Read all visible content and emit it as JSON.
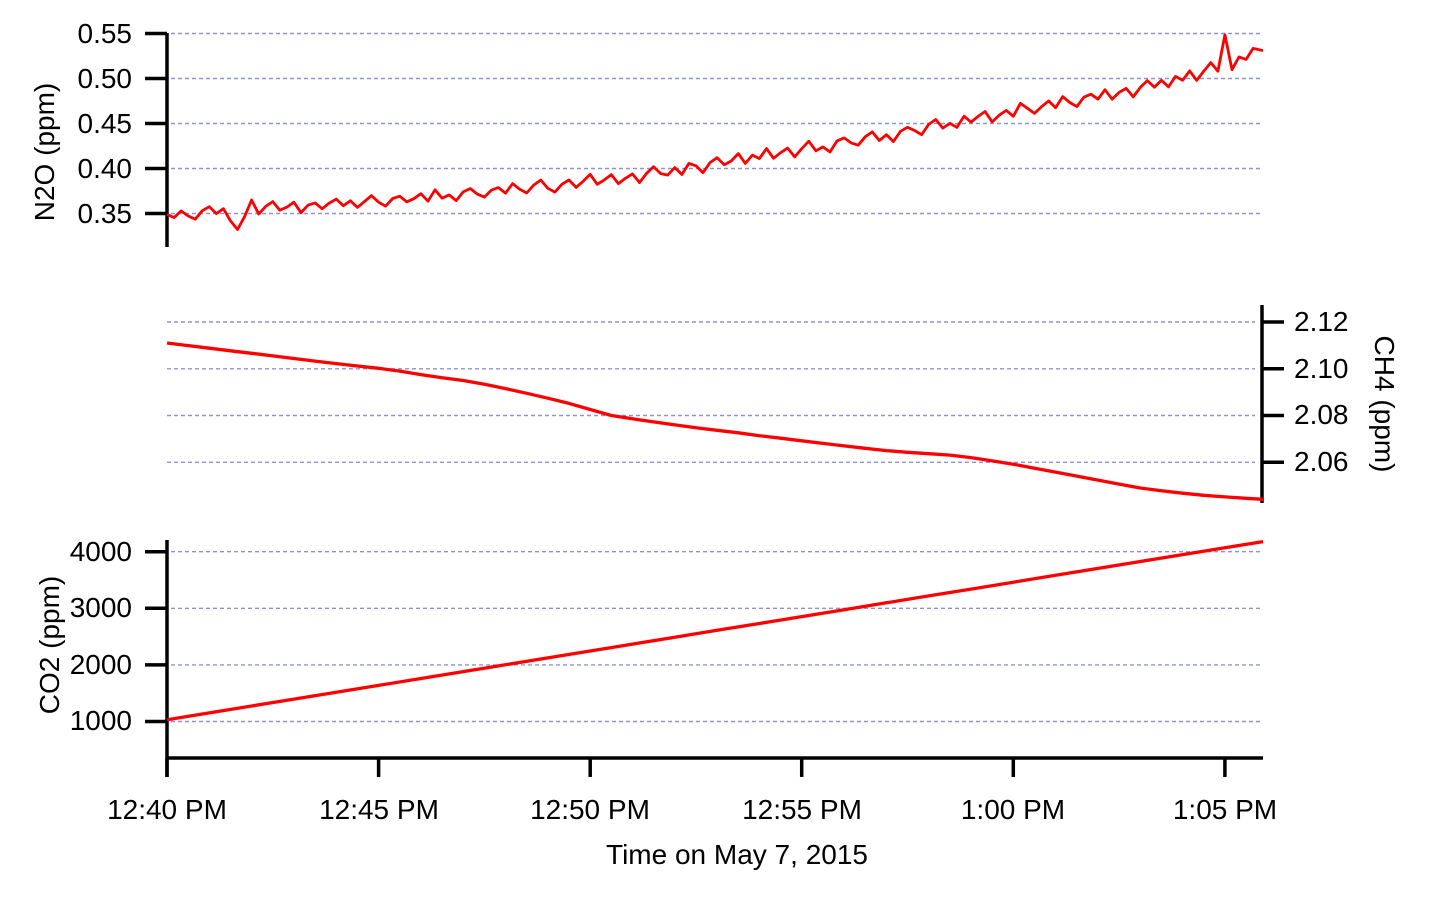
{
  "colors": {
    "series": "#ff0000",
    "grid": "#8888d6",
    "axis": "#000000",
    "text": "#000000",
    "background": "#ffffff"
  },
  "x_axis": {
    "title": "Time on May 7, 2015",
    "tick_labels": [
      "12:40 PM",
      "12:45 PM",
      "12:50 PM",
      "12:55 PM",
      "1:00 PM",
      "1:05 PM"
    ],
    "tick_minutes": [
      0,
      5,
      10,
      15,
      20,
      25
    ],
    "range_minutes": [
      0,
      25.9
    ]
  },
  "chart_data": [
    {
      "id": "n2o",
      "type": "line",
      "ylabel": "N2O (ppm)",
      "axis_side": "left",
      "tick_labels": [
        "0.55",
        "0.50",
        "0.45",
        "0.40",
        "0.35"
      ],
      "tick_values": [
        0.55,
        0.5,
        0.45,
        0.4,
        0.35
      ],
      "ylim": [
        0.312,
        0.55
      ],
      "grid": true,
      "series": {
        "name": "N2O",
        "color": "#ff0000",
        "sample_interval_min": 0.1666667,
        "trend_t": [
          0,
          1,
          2,
          3,
          4,
          5,
          6,
          7,
          8,
          9,
          10,
          11,
          12,
          13,
          14,
          15,
          16,
          17,
          18,
          19,
          20,
          21,
          22,
          23,
          24,
          25,
          25.9
        ],
        "trend_v": [
          0.35,
          0.3525,
          0.355,
          0.3575,
          0.36,
          0.3635,
          0.367,
          0.371,
          0.3755,
          0.38,
          0.3845,
          0.39,
          0.398,
          0.406,
          0.413,
          0.42,
          0.428,
          0.4365,
          0.445,
          0.4535,
          0.462,
          0.4705,
          0.479,
          0.488,
          0.498,
          0.5125,
          0.53
        ],
        "noise_milli": [
          -1,
          -5,
          2,
          -4,
          -8,
          1,
          5,
          -3,
          2,
          -12,
          -22,
          -8,
          10,
          -6,
          2,
          7,
          -3,
          0,
          5,
          -7,
          1,
          3,
          -4,
          2,
          6,
          -2,
          3,
          -5,
          1,
          7,
          -1,
          -6,
          2,
          4,
          -3,
          0,
          5,
          -4,
          8,
          -2,
          1,
          -6,
          3,
          6,
          -1,
          -5,
          2,
          4,
          -3,
          7,
          0,
          -5,
          3,
          8,
          -2,
          -7,
          1,
          5,
          -4,
          2,
          9,
          -3,
          1,
          6,
          -5,
          0,
          4,
          -7,
          2,
          8,
          -1,
          -4,
          3,
          -6,
          5,
          1,
          -8,
          2,
          6,
          -3,
          0,
          7,
          -5,
          3,
          -2,
          8,
          -4,
          1,
          5,
          -6,
          2,
          9,
          -3,
          0,
          -7,
          4,
          6,
          -1,
          -5,
          3,
          7,
          -4,
          1,
          -8,
          2,
          5,
          0,
          -6,
          4,
          8,
          -3,
          1,
          -5,
          6,
          -2,
          3,
          7,
          -6,
          0,
          4,
          -4,
          9,
          2,
          -5,
          1,
          6,
          -3,
          8,
          0,
          -6,
          3,
          5,
          -2,
          7,
          -5,
          1,
          4,
          -7,
          2,
          8,
          -1,
          5,
          -4,
          6,
          0,
          8,
          -5,
          3,
          10,
          -2,
          36,
          -6,
          5,
          -1,
          8,
          3,
          1
        ]
      }
    },
    {
      "id": "ch4",
      "type": "line",
      "ylabel": "CH4 (ppm)",
      "axis_side": "right",
      "tick_labels": [
        "2.12",
        "2.10",
        "2.08",
        "2.06"
      ],
      "tick_values": [
        2.12,
        2.1,
        2.08,
        2.06
      ],
      "ylim": [
        2.0426,
        2.1273
      ],
      "grid": true,
      "series": {
        "name": "CH4",
        "color": "#ff0000",
        "points": [
          [
            0,
            2.111
          ],
          [
            0.5,
            2.1099
          ],
          [
            1,
            2.1088
          ],
          [
            1.5,
            2.1077
          ],
          [
            2,
            2.1066
          ],
          [
            2.5,
            2.1055
          ],
          [
            3,
            2.1044
          ],
          [
            3.5,
            2.1033
          ],
          [
            4,
            2.1022
          ],
          [
            4.5,
            2.1012
          ],
          [
            5,
            2.1002
          ],
          [
            5.5,
            2.099
          ],
          [
            6,
            2.0975
          ],
          [
            6.5,
            2.0962
          ],
          [
            7,
            2.095
          ],
          [
            7.5,
            2.0934
          ],
          [
            8,
            2.0915
          ],
          [
            8.5,
            2.0895
          ],
          [
            9,
            2.0874
          ],
          [
            9.5,
            2.0852
          ],
          [
            10,
            2.0826
          ],
          [
            10.5,
            2.08
          ],
          [
            11,
            2.0786
          ],
          [
            11.5,
            2.0773
          ],
          [
            12,
            2.076
          ],
          [
            12.5,
            2.0748
          ],
          [
            13,
            2.0737
          ],
          [
            13.5,
            2.0726
          ],
          [
            14,
            2.0714
          ],
          [
            14.5,
            2.0703
          ],
          [
            15,
            2.0692
          ],
          [
            15.5,
            2.0681
          ],
          [
            16,
            2.067
          ],
          [
            16.5,
            2.066
          ],
          [
            17,
            2.065
          ],
          [
            17.5,
            2.0643
          ],
          [
            18,
            2.0637
          ],
          [
            18.5,
            2.0631
          ],
          [
            19,
            2.062
          ],
          [
            19.5,
            2.0606
          ],
          [
            20,
            2.0592
          ],
          [
            20.5,
            2.0575
          ],
          [
            21,
            2.0558
          ],
          [
            21.5,
            2.0541
          ],
          [
            22,
            2.0524
          ],
          [
            22.5,
            2.0507
          ],
          [
            23,
            2.049
          ],
          [
            23.5,
            2.0478
          ],
          [
            24,
            2.0468
          ],
          [
            24.5,
            2.0459
          ],
          [
            25,
            2.0452
          ],
          [
            25.5,
            2.0446
          ],
          [
            25.9,
            2.0442
          ]
        ]
      }
    },
    {
      "id": "co2",
      "type": "line",
      "ylabel": "CO2 (ppm)",
      "axis_side": "left",
      "tick_labels": [
        "4000",
        "3000",
        "2000",
        "1000"
      ],
      "tick_values": [
        4000,
        3000,
        2000,
        1000
      ],
      "ylim": [
        10,
        4210
      ],
      "grid": true,
      "series": {
        "name": "CO2",
        "color": "#ff0000",
        "points": [
          [
            0,
            1030
          ],
          [
            1,
            1152
          ],
          [
            2,
            1273
          ],
          [
            3,
            1395
          ],
          [
            4,
            1516
          ],
          [
            5,
            1638
          ],
          [
            6,
            1760
          ],
          [
            7,
            1881
          ],
          [
            8,
            2003
          ],
          [
            9,
            2124
          ],
          [
            10,
            2246
          ],
          [
            11,
            2368
          ],
          [
            12,
            2489
          ],
          [
            13,
            2611
          ],
          [
            14,
            2732
          ],
          [
            15,
            2854
          ],
          [
            16,
            2976
          ],
          [
            17,
            3097
          ],
          [
            18,
            3219
          ],
          [
            19,
            3340
          ],
          [
            20,
            3462
          ],
          [
            21,
            3584
          ],
          [
            22,
            3705
          ],
          [
            23,
            3827
          ],
          [
            24,
            3948
          ],
          [
            25,
            4070
          ],
          [
            25.9,
            4179
          ]
        ]
      }
    }
  ]
}
